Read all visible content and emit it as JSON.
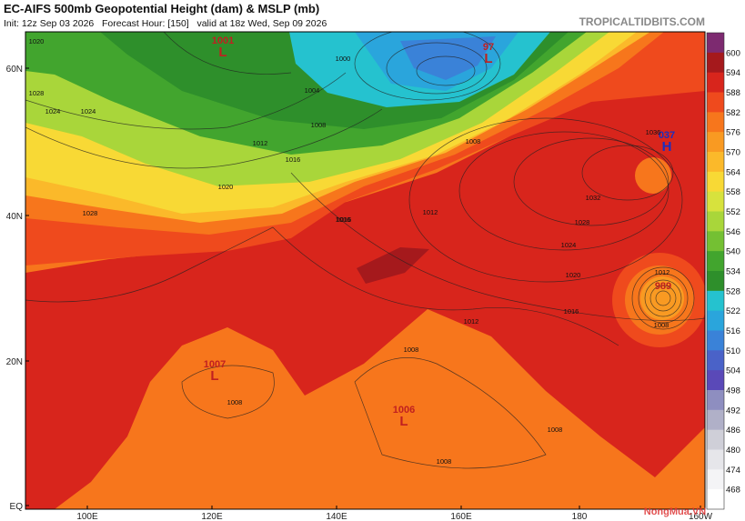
{
  "header": {
    "title": "EC-AIFS 500mb Geopotential Height (dam) & MSLP (mb)",
    "subtitle": "Init: 12z Sep 03 2026   Forecast Hour: [150]   valid at 18z Wed, Sep 09 2026",
    "site": "TROPICALTIDBITS.COM"
  },
  "axes": {
    "lat_labels": [
      "60N",
      "40N",
      "20N",
      "EQ"
    ],
    "lon_labels": [
      "100E",
      "120E",
      "140E",
      "160E",
      "180",
      "160W"
    ]
  },
  "colorbar": {
    "labels": [
      "600",
      "594",
      "588",
      "582",
      "576",
      "570",
      "564",
      "558",
      "552",
      "546",
      "540",
      "534",
      "528",
      "522",
      "516",
      "510",
      "504",
      "498",
      "492",
      "486",
      "480",
      "474",
      "468"
    ],
    "colors": [
      "#7d2a70",
      "#a5191c",
      "#d8251c",
      "#ef4a1d",
      "#f7761c",
      "#f99a22",
      "#fbb92a",
      "#f8d935",
      "#d7e23d",
      "#a9d63a",
      "#74c033",
      "#42a52e",
      "#2e8f2b",
      "#25c2cf",
      "#2aa5dc",
      "#3a82d8",
      "#4a62c8",
      "#5a49b8",
      "#8e8ec0",
      "#b0b0c8",
      "#cfcfd8",
      "#e6e6ea",
      "#f4f4f6",
      "#ffffff"
    ]
  },
  "centers": [
    {
      "value": "1001",
      "letter": "L"
    },
    {
      "value": "97",
      "letter": "L"
    },
    {
      "value": "037",
      "letter": "H"
    },
    {
      "value": "989",
      "letter": ""
    },
    {
      "value": "1007",
      "letter": "L"
    },
    {
      "value": "1006",
      "letter": "L"
    }
  ],
  "isobar_labels": [
    "1000",
    "1004",
    "1008",
    "1012",
    "1016",
    "1020",
    "1016",
    "1024",
    "1028",
    "1020",
    "1012",
    "1016",
    "1020",
    "1024",
    "1028",
    "1032",
    "1036",
    "1012",
    "1016",
    "1008",
    "1008",
    "1012",
    "1008",
    "1008",
    "1008",
    "1008",
    "1024",
    "1028"
  ],
  "watermark": "NongMua.VN"
}
